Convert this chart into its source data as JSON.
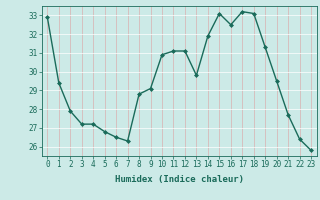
{
  "x": [
    0,
    1,
    2,
    3,
    4,
    5,
    6,
    7,
    8,
    9,
    10,
    11,
    12,
    13,
    14,
    15,
    16,
    17,
    18,
    19,
    20,
    21,
    22,
    23
  ],
  "y": [
    32.9,
    29.4,
    27.9,
    27.2,
    27.2,
    26.8,
    26.5,
    26.3,
    28.8,
    29.1,
    30.9,
    31.1,
    31.1,
    29.8,
    31.9,
    33.1,
    32.5,
    33.2,
    33.1,
    31.3,
    29.5,
    27.7,
    26.4,
    25.8
  ],
  "line_color": "#1a6b5a",
  "marker": "D",
  "markersize": 2.0,
  "linewidth": 1.0,
  "bg_color": "#cceae7",
  "grid_color": "#b0d4d0",
  "xlabel": "Humidex (Indice chaleur)",
  "xlim": [
    -0.5,
    23.5
  ],
  "ylim": [
    25.5,
    33.5
  ],
  "yticks": [
    26,
    27,
    28,
    29,
    30,
    31,
    32,
    33
  ],
  "xticks": [
    0,
    1,
    2,
    3,
    4,
    5,
    6,
    7,
    8,
    9,
    10,
    11,
    12,
    13,
    14,
    15,
    16,
    17,
    18,
    19,
    20,
    21,
    22,
    23
  ],
  "tick_color": "#1a6b5a",
  "tick_fontsize": 5.5,
  "xlabel_fontsize": 6.5
}
